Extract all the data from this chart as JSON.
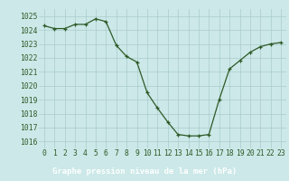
{
  "x": [
    0,
    1,
    2,
    3,
    4,
    5,
    6,
    7,
    8,
    9,
    10,
    11,
    12,
    13,
    14,
    15,
    16,
    17,
    18,
    19,
    20,
    21,
    22,
    23
  ],
  "y": [
    1024.3,
    1024.1,
    1024.1,
    1024.4,
    1024.4,
    1024.8,
    1024.6,
    1022.9,
    1022.1,
    1021.7,
    1019.5,
    1018.4,
    1017.4,
    1016.5,
    1016.4,
    1016.4,
    1016.5,
    1019.0,
    1021.2,
    1021.8,
    1022.4,
    1022.8,
    1023.0,
    1023.1
  ],
  "line_color": "#2d5a27",
  "marker_color": "#2d5a27",
  "bg_color": "#cce8e8",
  "grid_color": "#aacccc",
  "bottom_bar_color": "#336633",
  "xlabel": "Graphe pression niveau de la mer (hPa)",
  "ylim": [
    1015.5,
    1025.5
  ],
  "yticks": [
    1016,
    1017,
    1018,
    1019,
    1020,
    1021,
    1022,
    1023,
    1024,
    1025
  ],
  "xticks": [
    0,
    1,
    2,
    3,
    4,
    5,
    6,
    7,
    8,
    9,
    10,
    11,
    12,
    13,
    14,
    15,
    16,
    17,
    18,
    19,
    20,
    21,
    22,
    23
  ],
  "xlabel_fontsize": 6.5,
  "tick_fontsize": 5.8
}
